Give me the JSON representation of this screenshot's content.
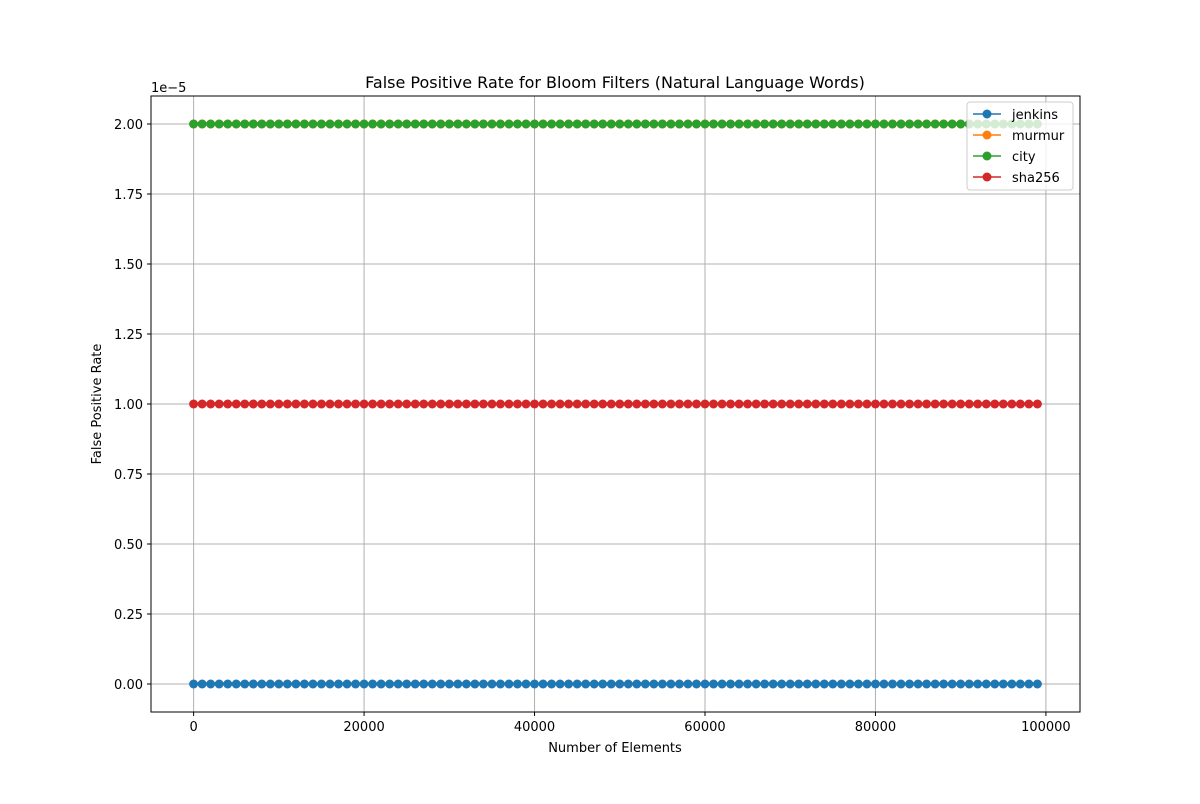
{
  "chart_data": {
    "type": "line",
    "title": "False Positive Rate for Bloom Filters (Natural Language Words)",
    "xlabel": "Number of Elements",
    "ylabel": "False Positive Rate",
    "y_offset_label": "1e−5",
    "xlim": [
      -5000,
      104000
    ],
    "ylim": [
      -0.1,
      2.1
    ],
    "y_scale_note": "tick values shown in units of 1e-5",
    "x_ticks": [
      {
        "value": 0,
        "label": "0"
      },
      {
        "value": 20000,
        "label": "20000"
      },
      {
        "value": 40000,
        "label": "40000"
      },
      {
        "value": 60000,
        "label": "60000"
      },
      {
        "value": 80000,
        "label": "80000"
      },
      {
        "value": 100000,
        "label": "100000"
      }
    ],
    "y_ticks": [
      {
        "value": 0.0,
        "label": "0.00"
      },
      {
        "value": 0.25,
        "label": "0.25"
      },
      {
        "value": 0.5,
        "label": "0.50"
      },
      {
        "value": 0.75,
        "label": "0.75"
      },
      {
        "value": 1.0,
        "label": "1.00"
      },
      {
        "value": 1.25,
        "label": "1.25"
      },
      {
        "value": 1.5,
        "label": "1.50"
      },
      {
        "value": 1.75,
        "label": "1.75"
      },
      {
        "value": 2.0,
        "label": "2.00"
      }
    ],
    "x": {
      "start": 0,
      "stop": 99000,
      "step": 1000
    },
    "series": [
      {
        "name": "jenkins",
        "color": "#1f77b4",
        "constant_value": 0.0
      },
      {
        "name": "murmur",
        "color": "#ff7f0e",
        "constant_value": 2.0
      },
      {
        "name": "city",
        "color": "#2ca02c",
        "constant_value": 2.0
      },
      {
        "name": "sha256",
        "color": "#d62728",
        "constant_value": 1.0
      }
    ],
    "grid": true,
    "legend_position": "top-right",
    "markers": "circle"
  }
}
